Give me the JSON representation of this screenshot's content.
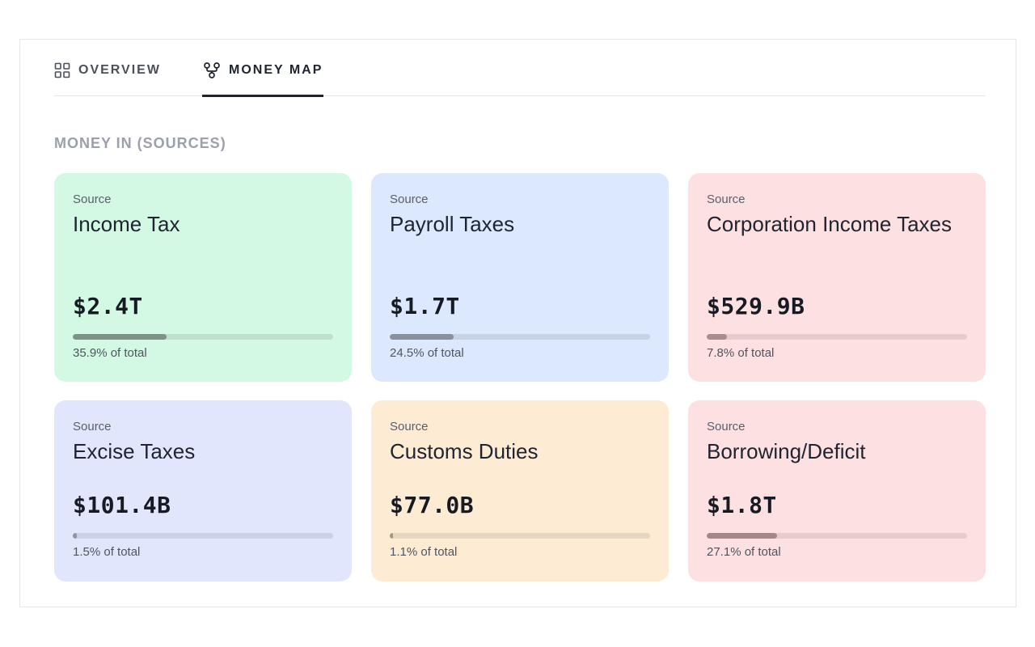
{
  "tabs": [
    {
      "label": "OVERVIEW",
      "icon": "grid-icon"
    },
    {
      "label": "MONEY MAP",
      "icon": "money-map-icon",
      "active": true
    }
  ],
  "section": {
    "title": "MONEY IN (SOURCES)"
  },
  "cards": [
    {
      "kicker": "Source",
      "name": "Income Tax",
      "amount": "$2.4T",
      "pct_label": "35.9% of total",
      "pct": 35.9,
      "bg": "#d3f8e3",
      "track": "#c0dfcd",
      "fill": "#7f9287"
    },
    {
      "kicker": "Source",
      "name": "Payroll Taxes",
      "amount": "$1.7T",
      "pct_label": "24.5% of total",
      "pct": 24.5,
      "bg": "#dbe8fd",
      "track": "#c7d2e4",
      "fill": "#8a919c"
    },
    {
      "kicker": "Source",
      "name": "Corporation Income Taxes",
      "amount": "$529.9B",
      "pct_label": "7.8% of total",
      "pct": 7.8,
      "bg": "#fde0e1",
      "track": "#e8cbcd",
      "fill": "#a88c8e"
    },
    {
      "kicker": "Source",
      "name": "Excise Taxes",
      "amount": "$101.4B",
      "pct_label": "1.5% of total",
      "pct": 1.5,
      "bg": "#e1e6fd",
      "track": "#cad0e6",
      "fill": "#8e93a5"
    },
    {
      "kicker": "Source",
      "name": "Customs Duties",
      "amount": "$77.0B",
      "pct_label": "1.1% of total",
      "pct": 1.1,
      "bg": "#feebd3",
      "track": "#e6d5c1",
      "fill": "#a39682"
    },
    {
      "kicker": "Source",
      "name": "Borrowing/Deficit",
      "amount": "$1.8T",
      "pct_label": "27.1% of total",
      "pct": 27.1,
      "bg": "#fde0e1",
      "track": "#e8cbcd",
      "fill": "#a5878a"
    }
  ]
}
